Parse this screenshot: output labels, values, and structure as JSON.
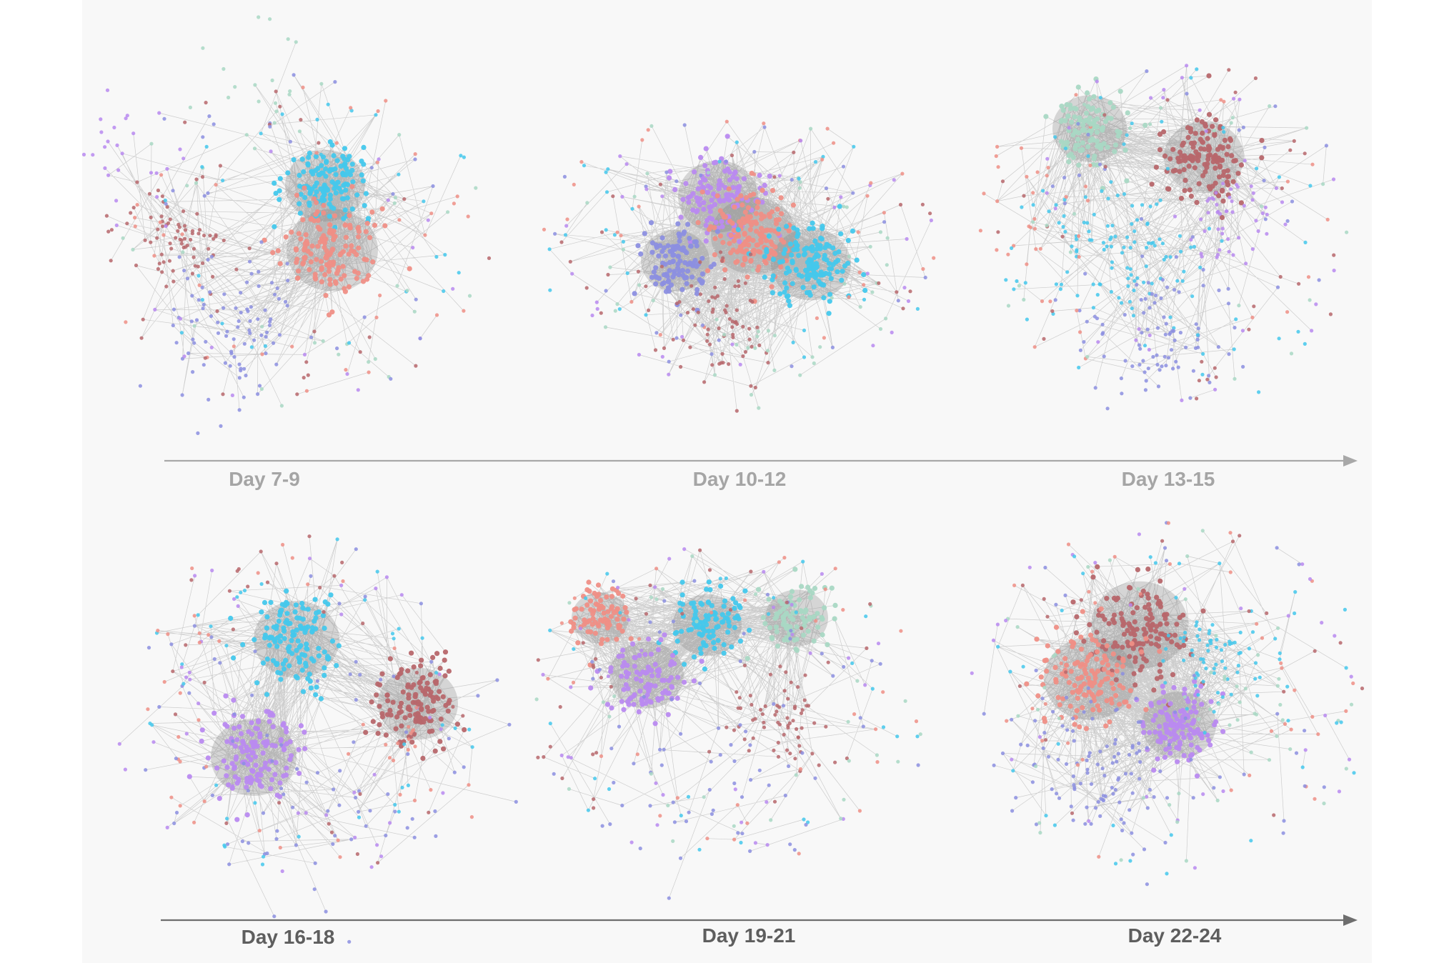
{
  "rows": [
    {
      "labels": [
        "Day 7-9",
        "Day 10-12",
        "Day 13-15"
      ],
      "axis_color": "#a8a8a8"
    },
    {
      "labels": [
        "Day 16-18",
        "Day 19-21",
        "Day 22-24"
      ],
      "axis_color": "#6e6e6e"
    }
  ],
  "community_colors": {
    "periwinkle": "#8c8fe0",
    "cyan": "#44c8ec",
    "salmon": "#ef8f86",
    "brick": "#b7676c",
    "mint": "#a9d8c4",
    "lavender": "#b98af0",
    "pink": "#f2a6c4"
  },
  "edge_color": "#9a9a9a",
  "panels": [
    {
      "label": "Day 7-9",
      "clusters": [
        {
          "color": "cyan",
          "size": 150,
          "density": "dense"
        },
        {
          "color": "salmon",
          "size": 160,
          "density": "dense"
        },
        {
          "color": "brick",
          "size": 110,
          "density": "medium"
        },
        {
          "color": "periwinkle",
          "size": 140,
          "density": "medium"
        },
        {
          "color": "lavender",
          "size": 60,
          "density": "sparse"
        },
        {
          "color": "mint",
          "size": 40,
          "density": "sparse"
        }
      ]
    },
    {
      "label": "Day 10-12",
      "clusters": [
        {
          "color": "lavender",
          "size": 130,
          "density": "dense"
        },
        {
          "color": "salmon",
          "size": 170,
          "density": "dense"
        },
        {
          "color": "cyan",
          "size": 160,
          "density": "dense"
        },
        {
          "color": "periwinkle",
          "size": 120,
          "density": "dense"
        },
        {
          "color": "brick",
          "size": 110,
          "density": "medium"
        },
        {
          "color": "mint",
          "size": 40,
          "density": "sparse"
        }
      ]
    },
    {
      "label": "Day 13-15",
      "clusters": [
        {
          "color": "mint",
          "size": 120,
          "density": "dense"
        },
        {
          "color": "brick",
          "size": 150,
          "density": "dense"
        },
        {
          "color": "cyan",
          "size": 170,
          "density": "medium"
        },
        {
          "color": "lavender",
          "size": 80,
          "density": "medium"
        },
        {
          "color": "periwinkle",
          "size": 130,
          "density": "medium"
        },
        {
          "color": "salmon",
          "size": 50,
          "density": "sparse"
        }
      ]
    },
    {
      "label": "Day 16-18",
      "clusters": [
        {
          "color": "cyan",
          "size": 150,
          "density": "dense"
        },
        {
          "color": "brick",
          "size": 140,
          "density": "dense"
        },
        {
          "color": "lavender",
          "size": 150,
          "density": "dense"
        },
        {
          "color": "periwinkle",
          "size": 150,
          "density": "sparse"
        },
        {
          "color": "salmon",
          "size": 40,
          "density": "sparse"
        }
      ]
    },
    {
      "label": "Day 19-21",
      "clusters": [
        {
          "color": "salmon",
          "size": 90,
          "density": "dense"
        },
        {
          "color": "cyan",
          "size": 110,
          "density": "dense"
        },
        {
          "color": "mint",
          "size": 100,
          "density": "dense"
        },
        {
          "color": "lavender",
          "size": 110,
          "density": "dense"
        },
        {
          "color": "brick",
          "size": 110,
          "density": "medium"
        },
        {
          "color": "periwinkle",
          "size": 130,
          "density": "sparse"
        }
      ]
    },
    {
      "label": "Day 22-24",
      "clusters": [
        {
          "color": "brick",
          "size": 160,
          "density": "dense"
        },
        {
          "color": "salmon",
          "size": 150,
          "density": "dense"
        },
        {
          "color": "lavender",
          "size": 140,
          "density": "dense"
        },
        {
          "color": "cyan",
          "size": 110,
          "density": "medium"
        },
        {
          "color": "periwinkle",
          "size": 170,
          "density": "medium"
        },
        {
          "color": "mint",
          "size": 60,
          "density": "sparse"
        }
      ]
    }
  ]
}
